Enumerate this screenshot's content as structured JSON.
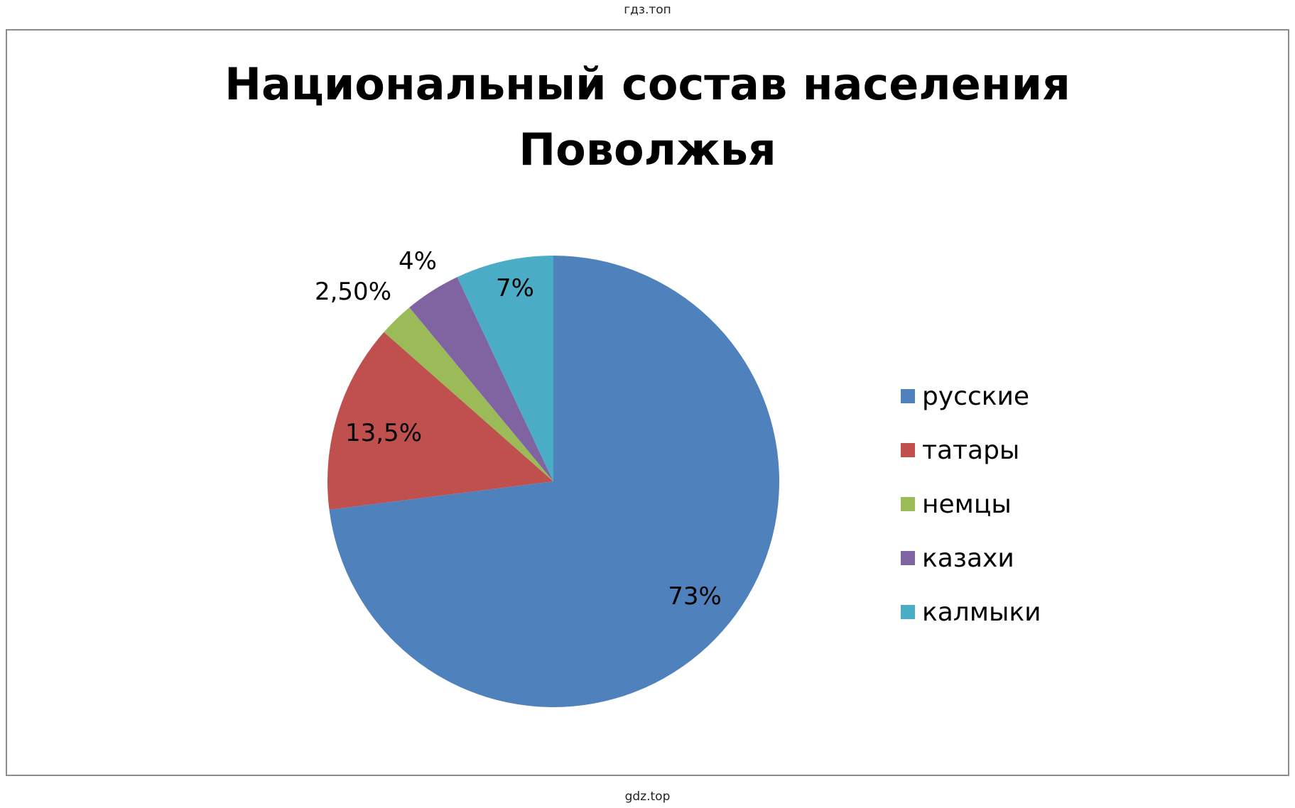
{
  "watermark_top": "гдз.топ",
  "watermark_bottom": "gdz.top",
  "chart_data": {
    "type": "pie",
    "title": "Национальный состав населения\nПоволжья",
    "legend_position": "right",
    "slices": [
      {
        "name": "русские",
        "value": 73,
        "label": "73%",
        "color": "#4f81bd"
      },
      {
        "name": "татары",
        "value": 13.5,
        "label": "13,5%",
        "color": "#c0504d"
      },
      {
        "name": "немцы",
        "value": 2.5,
        "label": "2,50%",
        "color": "#9bbb59"
      },
      {
        "name": "казахи",
        "value": 4,
        "label": "4%",
        "color": "#8064a2"
      },
      {
        "name": "калмыки",
        "value": 7,
        "label": "7%",
        "color": "#4bacc6"
      }
    ]
  }
}
